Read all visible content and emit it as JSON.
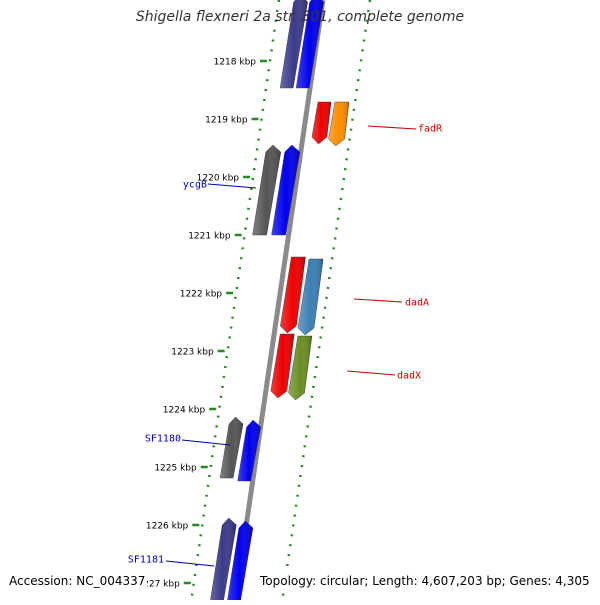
{
  "header": {
    "title": "Shigella flexneri 2a str. 301, complete genome"
  },
  "footer": {
    "accession": "Accession: NC_004337",
    "summary": "Topology: circular; Length: 4,607,203 bp; Genes: 4,305"
  },
  "map": {
    "ticks": [
      "1218 kbp",
      "1219 kbp",
      "1220 kbp",
      "1221 kbp",
      "1222 kbp",
      "1223 kbp",
      "1224 kbp",
      "1225 kbp",
      "1226 kbp",
      "1227 kbp"
    ],
    "colors": {
      "backbone": "#8a8a8a",
      "ruler_dots": "#228B22",
      "label_forward": "#0000aa",
      "label_reverse": "#cc0000"
    },
    "features": [
      {
        "kind": "cds",
        "strand": "forward",
        "color": "#3a3a8a"
      },
      {
        "kind": "gene",
        "strand": "forward",
        "color": "#0000ee"
      },
      {
        "kind": "cds",
        "strand": "reverse",
        "color": "#ee0000",
        "label": ""
      },
      {
        "kind": "gene",
        "strand": "reverse",
        "color": "#ff8c00",
        "label": "fadR"
      },
      {
        "kind": "cds",
        "strand": "forward",
        "color": "#555555",
        "label": "ycgB"
      },
      {
        "kind": "gene",
        "strand": "forward",
        "color": "#0000ee"
      },
      {
        "kind": "cds",
        "strand": "reverse",
        "color": "#ee0000"
      },
      {
        "kind": "gene",
        "strand": "reverse",
        "color": "#3a7fb5",
        "label": "dadA"
      },
      {
        "kind": "cds",
        "strand": "reverse",
        "color": "#ee0000"
      },
      {
        "kind": "gene",
        "strand": "reverse",
        "color": "#6b8e23",
        "label": "dadX"
      },
      {
        "kind": "cds",
        "strand": "forward",
        "color": "#555555",
        "label": "SF1180"
      },
      {
        "kind": "gene",
        "strand": "forward",
        "color": "#0000ee"
      },
      {
        "kind": "cds",
        "strand": "forward",
        "color": "#3a3a8a",
        "label": "SF1181"
      },
      {
        "kind": "gene",
        "strand": "forward",
        "color": "#0000ee"
      }
    ]
  }
}
